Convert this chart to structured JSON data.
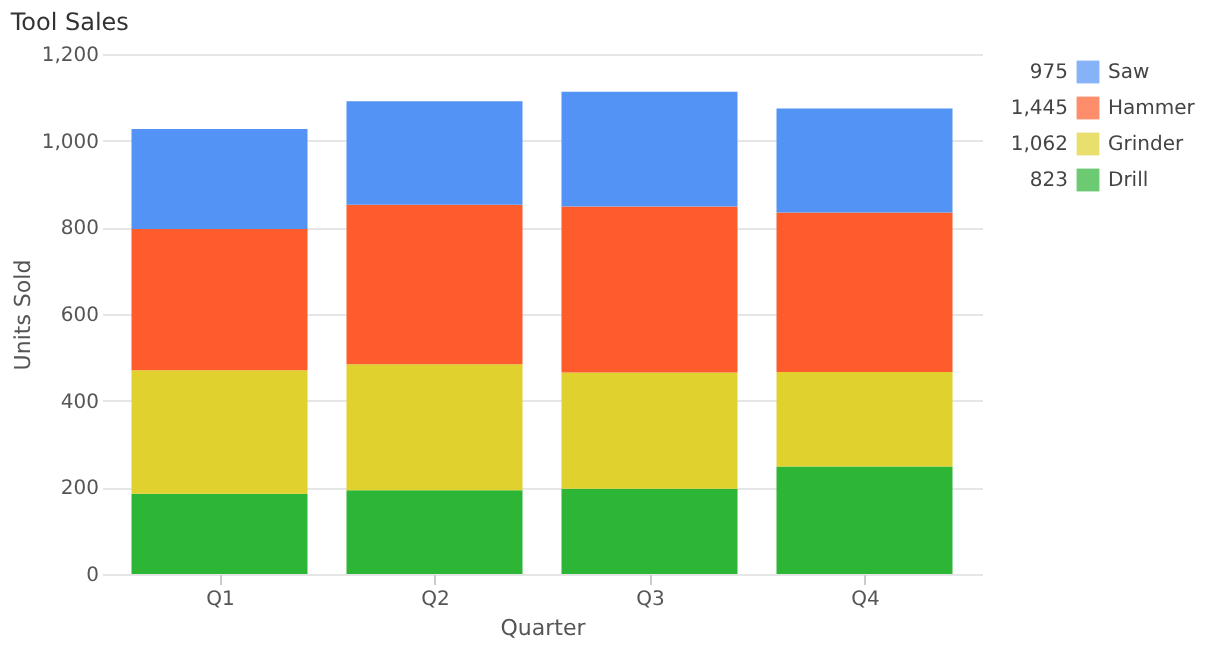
{
  "chart_data": {
    "type": "bar",
    "title": "Tool Sales",
    "xlabel": "Quarter",
    "ylabel": "Units Sold",
    "categories": [
      "Q1",
      "Q2",
      "Q3",
      "Q4"
    ],
    "stacked": true,
    "series": [
      {
        "name": "Drill",
        "color": "#2db536",
        "values": [
          185,
          193,
          197,
          248
        ]
      },
      {
        "name": "Grinder",
        "color": "#e0d12e",
        "values": [
          285,
          291,
          268,
          218
        ]
      },
      {
        "name": "Hammer",
        "color": "#fe5c2c",
        "values": [
          326,
          368,
          383,
          368
        ]
      },
      {
        "name": "Saw",
        "color": "#5393f5",
        "values": [
          231,
          239,
          265,
          240
        ]
      }
    ],
    "annotations": [
      "823",
      "1,062",
      "1,445",
      "975"
    ],
    "ylim": [
      0,
      1200
    ],
    "yticks": [
      {
        "value": 0,
        "label": "0"
      },
      {
        "value": 200,
        "label": "200"
      },
      {
        "value": 400,
        "label": "400"
      },
      {
        "value": 600,
        "label": "600"
      },
      {
        "value": 800,
        "label": "800"
      },
      {
        "value": 1000,
        "label": "1,000"
      },
      {
        "value": 1200,
        "label": "1,200"
      }
    ],
    "grid": "y",
    "legend": "top right"
  }
}
